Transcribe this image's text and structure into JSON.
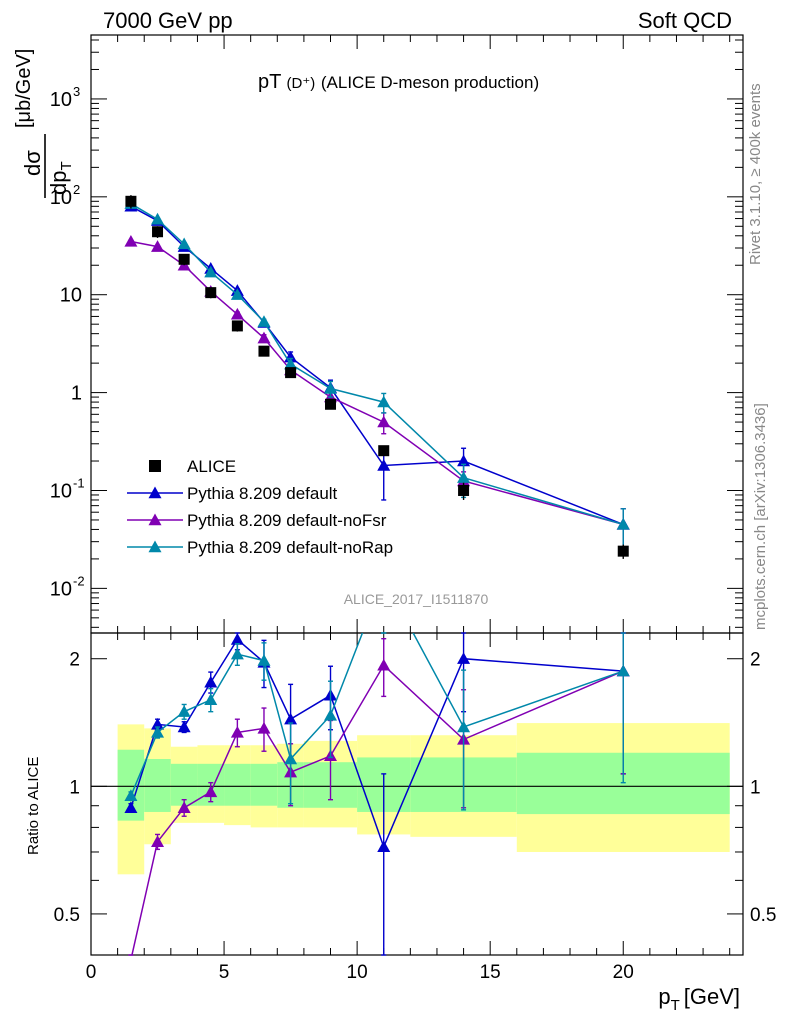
{
  "header": {
    "left": "7000 GeV pp",
    "right": "Soft QCD"
  },
  "side_labels": {
    "rivet": "Rivet 3.1.10, ≥ 400k events",
    "mcplots": "mcplots.cern.ch [arXiv:1306.3436]"
  },
  "analysis_tag": "ALICE_2017_I1511870",
  "colors": {
    "data": "#000000",
    "default": "#0000cc",
    "noFsr": "#8000b3",
    "noRap": "#0088aa",
    "band_inner": "#99ff99",
    "band_outer": "#ffff99"
  },
  "chart_data": [
    {
      "type": "line",
      "title": "pT(D⁺) (ALICE D-meson production)",
      "title_main": "pT",
      "title_paren": "(D⁺)",
      "title_rest": "(ALICE D-meson production)",
      "ylabel_num": "dσ",
      "ylabel_den": "dp",
      "ylabel_den_sub": "T",
      "ylabel_unit": "[μb/GeV]",
      "yscale": "log",
      "xlim": [
        0,
        24.5
      ],
      "ylim": [
        0.0035,
        4500
      ],
      "yticks": [
        {
          "label": "10",
          "sup": "-2"
        },
        {
          "label": "10",
          "sup": "-1"
        },
        {
          "label": "1",
          "sup": ""
        },
        {
          "label": "10",
          "sup": ""
        },
        {
          "label": "10",
          "sup": "2"
        },
        {
          "label": "10",
          "sup": "3"
        }
      ],
      "legend_position": "bottom-left",
      "data": {
        "name": "ALICE",
        "x": [
          1.5,
          2.5,
          3.5,
          4.5,
          5.5,
          6.5,
          7.5,
          9,
          11,
          14,
          20
        ],
        "y": [
          90,
          44,
          23,
          10.5,
          4.8,
          2.65,
          1.6,
          0.76,
          0.255,
          0.1,
          0.024
        ],
        "yerr_low": [
          14,
          6,
          3,
          1.3,
          0.6,
          0.3,
          0.18,
          0.08,
          0.03,
          0.02,
          0.004
        ],
        "yerr_high": [
          14,
          6,
          3,
          1.3,
          0.6,
          0.3,
          0.18,
          0.08,
          0.03,
          0.02,
          0.004
        ]
      },
      "series": [
        {
          "key": "default",
          "name": "Pythia 8.209 default",
          "x": [
            1.5,
            2.5,
            3.5,
            4.5,
            5.5,
            6.5,
            7.5,
            9,
            11,
            14,
            20
          ],
          "y": [
            80,
            57,
            31,
            18.5,
            11,
            5.2,
            2.3,
            1.12,
            0.18,
            0.2,
            0.045
          ],
          "yerr": [
            2,
            1.2,
            0.8,
            0.6,
            0.45,
            0.3,
            0.3,
            0.22,
            0.1,
            0.07,
            0.02
          ]
        },
        {
          "key": "noFsr",
          "name": "Pythia 8.209 default-noFsr",
          "x": [
            1.5,
            2.5,
            3.5,
            4.5,
            5.5,
            6.5,
            7.5,
            9,
            11,
            14,
            20
          ],
          "y": [
            35,
            31,
            20,
            10.8,
            6.3,
            3.6,
            1.7,
            0.9,
            0.5,
            0.125,
            0.045
          ],
          "yerr": [
            1,
            0.9,
            0.6,
            0.5,
            0.35,
            0.3,
            0.25,
            0.15,
            0.12,
            0.03,
            0.02
          ]
        },
        {
          "key": "noRap",
          "name": "Pythia 8.209 default-noRap",
          "x": [
            1.5,
            2.5,
            3.5,
            4.5,
            5.5,
            6.5,
            7.5,
            9,
            11,
            14,
            20
          ],
          "y": [
            85,
            59,
            33,
            17,
            10,
            5.3,
            1.95,
            1.1,
            0.8,
            0.135,
            0.045
          ],
          "yerr": [
            2,
            1.2,
            0.8,
            0.6,
            0.45,
            0.3,
            0.28,
            0.2,
            0.18,
            0.05,
            0.02
          ]
        }
      ]
    },
    {
      "type": "line",
      "ylabel": "Ratio to ALICE",
      "xlabel": "p",
      "xlabel_sub": "T",
      "xlabel_unit": "[GeV]",
      "yscale": "log",
      "xlim": [
        0,
        24.5
      ],
      "ylim": [
        0.4,
        2.3
      ],
      "xticks": [
        0,
        5,
        10,
        15,
        20
      ],
      "yticks": [
        0.5,
        1,
        2
      ],
      "reference_line": 1,
      "bands": [
        {
          "x0": 1,
          "x1": 2,
          "inner": [
            0.83,
            1.22
          ],
          "outer": [
            0.62,
            1.4
          ]
        },
        {
          "x0": 2,
          "x1": 3,
          "inner": [
            0.87,
            1.16
          ],
          "outer": [
            0.73,
            1.37
          ]
        },
        {
          "x0": 3,
          "x1": 4,
          "inner": [
            0.9,
            1.13
          ],
          "outer": [
            0.82,
            1.24
          ]
        },
        {
          "x0": 4,
          "x1": 5,
          "inner": [
            0.9,
            1.13
          ],
          "outer": [
            0.82,
            1.25
          ]
        },
        {
          "x0": 5,
          "x1": 6,
          "inner": [
            0.9,
            1.13
          ],
          "outer": [
            0.81,
            1.25
          ]
        },
        {
          "x0": 6,
          "x1": 7,
          "inner": [
            0.9,
            1.13
          ],
          "outer": [
            0.8,
            1.25
          ]
        },
        {
          "x0": 7,
          "x1": 8,
          "inner": [
            0.89,
            1.14
          ],
          "outer": [
            0.8,
            1.26
          ]
        },
        {
          "x0": 8,
          "x1": 10,
          "inner": [
            0.89,
            1.14
          ],
          "outer": [
            0.8,
            1.28
          ]
        },
        {
          "x0": 10,
          "x1": 12,
          "inner": [
            0.87,
            1.17
          ],
          "outer": [
            0.77,
            1.32
          ]
        },
        {
          "x0": 12,
          "x1": 16,
          "inner": [
            0.87,
            1.17
          ],
          "outer": [
            0.76,
            1.32
          ]
        },
        {
          "x0": 16,
          "x1": 24,
          "inner": [
            0.86,
            1.2
          ],
          "outer": [
            0.7,
            1.41
          ]
        }
      ],
      "series": [
        {
          "key": "default",
          "name": "Pythia 8.209 default",
          "x": [
            1.5,
            2.5,
            3.5,
            4.5,
            5.5,
            6.5,
            7.5,
            9,
            11,
            14,
            20
          ],
          "y": [
            0.89,
            1.4,
            1.38,
            1.76,
            2.22,
            1.96,
            1.44,
            1.64,
            0.72,
            2,
            1.87
          ],
          "yerr": [
            0.02,
            0.04,
            0.04,
            0.1,
            0.12,
            0.25,
            0.3,
            0.28,
            0.35,
            0.5,
            0.8
          ]
        },
        {
          "key": "noFsr",
          "name": "Pythia 8.209 default-noFsr",
          "x": [
            1.5,
            2.5,
            3.5,
            4.5,
            5.5,
            6.5,
            7.5,
            9,
            11,
            14,
            20
          ],
          "y": [
            0.39,
            0.74,
            0.89,
            0.97,
            1.34,
            1.37,
            1.08,
            1.18,
            1.93,
            1.29,
            1.87
          ],
          "yerr": [
            0.01,
            0.03,
            0.04,
            0.05,
            0.1,
            0.16,
            0.18,
            0.25,
            0.3,
            0.4,
            0.8
          ]
        },
        {
          "key": "noRap",
          "name": "Pythia 8.209 default-noRap",
          "x": [
            1.5,
            2.5,
            3.5,
            4.5,
            5.5,
            6.5,
            7.5,
            9,
            11,
            14,
            20
          ],
          "y": [
            0.95,
            1.34,
            1.5,
            1.6,
            2.05,
            1.98,
            1.16,
            1.47,
            3.1,
            1.38,
            1.87
          ],
          "yerr": [
            0.02,
            0.04,
            0.06,
            0.1,
            0.12,
            0.2,
            0.25,
            0.3,
            0.4,
            0.5,
            0.85
          ]
        }
      ]
    }
  ]
}
